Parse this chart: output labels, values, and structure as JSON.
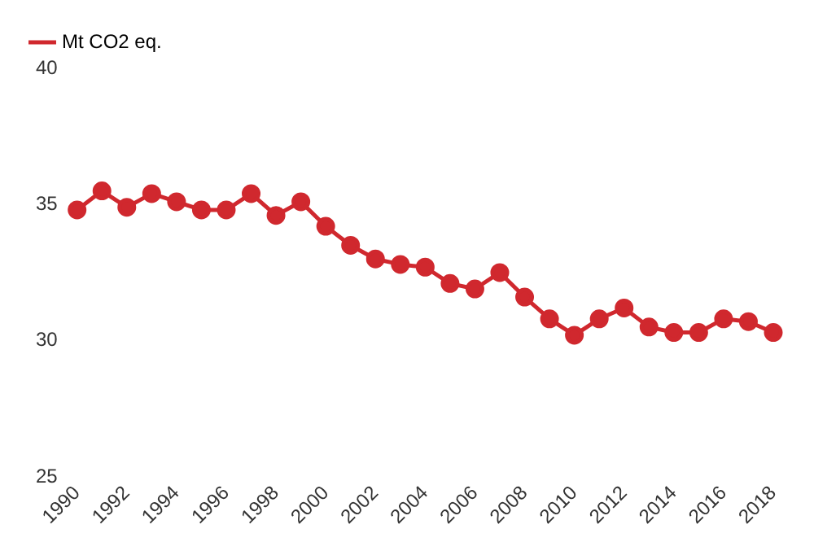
{
  "chart_data": {
    "type": "line",
    "x": [
      1990,
      1991,
      1992,
      1993,
      1994,
      1995,
      1996,
      1997,
      1998,
      1999,
      2000,
      2001,
      2002,
      2003,
      2004,
      2005,
      2006,
      2007,
      2008,
      2009,
      2010,
      2011,
      2012,
      2013,
      2014,
      2015,
      2016,
      2017,
      2018
    ],
    "series": [
      {
        "name": "Mt CO2 eq.",
        "color": "#d0282e",
        "values": [
          34.8,
          35.5,
          34.9,
          35.4,
          35.1,
          34.8,
          34.8,
          35.4,
          34.6,
          35.1,
          34.2,
          33.5,
          33.0,
          32.8,
          32.7,
          32.1,
          31.9,
          32.5,
          31.6,
          30.8,
          30.2,
          30.8,
          31.2,
          30.5,
          30.3,
          30.3,
          30.8,
          30.7,
          30.3
        ]
      }
    ],
    "xlim": [
      1990,
      2018
    ],
    "xticks": [
      1990,
      1992,
      1994,
      1996,
      1998,
      2000,
      2002,
      2004,
      2006,
      2008,
      2010,
      2012,
      2014,
      2016,
      2018
    ],
    "ylim": [
      25,
      40
    ],
    "yticks": [
      25,
      30,
      35,
      40
    ],
    "legend": "top left",
    "marker": "circle",
    "line_style": "solid",
    "grid": false
  }
}
